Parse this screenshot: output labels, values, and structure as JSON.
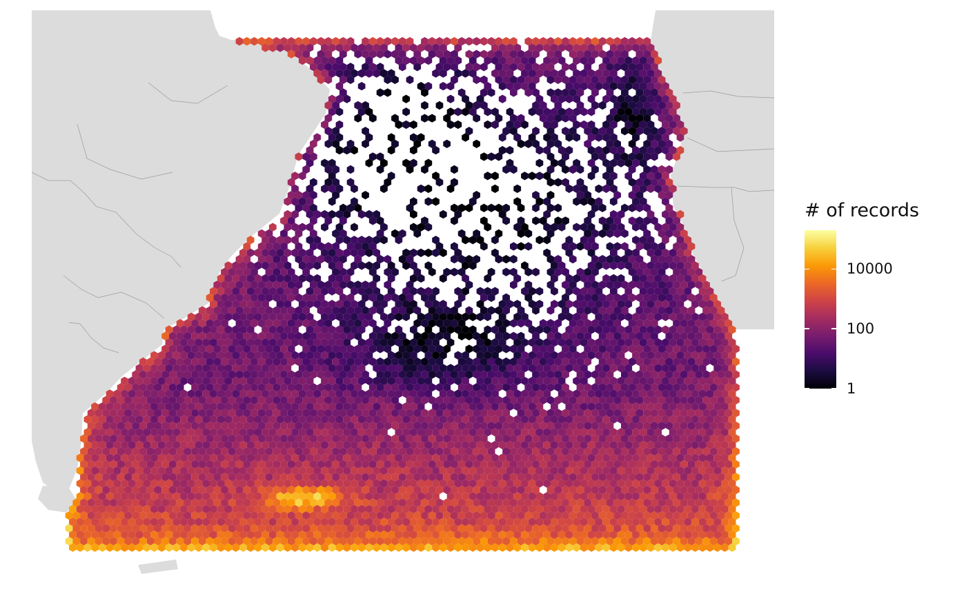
{
  "map": {
    "background_color": "#ffffff",
    "land_color": "#dcdcdc",
    "border_color": "#9a9a9a",
    "no_data_color": "#ffffff",
    "cell_shape": "hexagon",
    "color_scale": "log10",
    "colormap": "inferno",
    "regions": [
      "south-america",
      "africa",
      "south-atlantic-ocean"
    ]
  },
  "legend": {
    "title": "# of records",
    "scale": "log10",
    "range": [
      1,
      200000
    ],
    "ticks": [
      {
        "value": 1,
        "label": "1"
      },
      {
        "value": 100,
        "label": "100"
      },
      {
        "value": 10000,
        "label": "10000"
      }
    ],
    "colors": [
      "#000004",
      "#1b0c41",
      "#4a0c6b",
      "#781c6d",
      "#a52c60",
      "#cf4446",
      "#ed6925",
      "#fb9b06",
      "#f7d13d",
      "#fcffa4"
    ]
  }
}
